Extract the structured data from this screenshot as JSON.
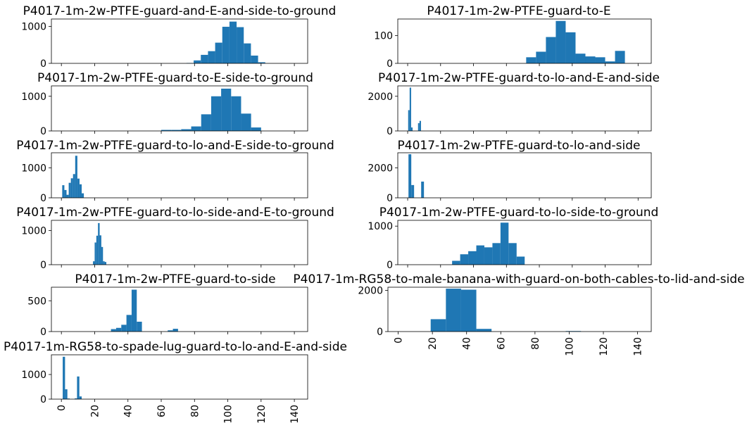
{
  "chart_data": [
    {
      "type": "bar",
      "title": "P4017-1m-2w-PTFE-guard-and-E-and-side-to-ground",
      "bin_width": 4.3,
      "bars": [
        [
          75.2,
          10
        ],
        [
          79.5,
          80
        ],
        [
          83.8,
          230
        ],
        [
          88.1,
          330
        ],
        [
          92.4,
          560
        ],
        [
          96.7,
          990
        ],
        [
          101.0,
          1130
        ],
        [
          105.3,
          980
        ],
        [
          109.6,
          540
        ],
        [
          113.9,
          210
        ],
        [
          118.2,
          30
        ]
      ],
      "yticks": [
        0,
        1000
      ],
      "ylim": [
        0,
        1200
      ],
      "show_xticklabels": false
    },
    {
      "type": "bar",
      "title": "P4017-1m-2w-PTFE-guard-to-E",
      "bin_width": 6.0,
      "bars": [
        [
          72.0,
          22
        ],
        [
          78.0,
          42
        ],
        [
          84.0,
          95
        ],
        [
          90.0,
          153
        ],
        [
          96.0,
          112
        ],
        [
          102.0,
          35
        ],
        [
          108.0,
          25
        ],
        [
          114.0,
          22
        ],
        [
          120.0,
          7
        ],
        [
          126.0,
          45
        ]
      ],
      "yticks": [
        0,
        100
      ],
      "ylim": [
        0,
        160
      ],
      "show_xticklabels": false
    },
    {
      "type": "bar",
      "title": "P4017-1m-2w-PTFE-guard-to-E-side-to-ground",
      "bin_width": 6.0,
      "bars": [
        [
          60.0,
          30
        ],
        [
          66.0,
          30
        ],
        [
          72.0,
          50
        ],
        [
          78.0,
          130
        ],
        [
          84.0,
          480
        ],
        [
          90.0,
          1000
        ],
        [
          96.0,
          1220
        ],
        [
          102.0,
          1000
        ],
        [
          108.0,
          500
        ],
        [
          114.0,
          100
        ]
      ],
      "yticks": [
        0,
        1000
      ],
      "ylim": [
        0,
        1300
      ],
      "show_xticklabels": false
    },
    {
      "type": "bar",
      "title": "P4017-1m-2w-PTFE-guard-to-lo-and-E-and-side",
      "bin_width": 0.9,
      "bars": [
        [
          0.3,
          1200
        ],
        [
          1.2,
          2500
        ],
        [
          2.1,
          200
        ],
        [
          6.3,
          450
        ],
        [
          7.2,
          580
        ]
      ],
      "yticks": [
        0,
        2000
      ],
      "ylim": [
        0,
        2600
      ],
      "show_xticklabels": false
    },
    {
      "type": "bar",
      "title": "P4017-1m-2w-PTFE-guard-to-lo-and-E-side-to-ground",
      "bin_width": 1.3,
      "bars": [
        [
          0.5,
          420
        ],
        [
          1.8,
          260
        ],
        [
          3.1,
          100
        ],
        [
          4.4,
          500
        ],
        [
          5.7,
          650
        ],
        [
          7.0,
          790
        ],
        [
          8.3,
          1400
        ],
        [
          9.6,
          640
        ],
        [
          10.9,
          450
        ],
        [
          12.2,
          150
        ]
      ],
      "yticks": [
        0,
        1000
      ],
      "ylim": [
        0,
        1500
      ],
      "show_xticklabels": false
    },
    {
      "type": "bar",
      "title": "P4017-1m-2w-PTFE-guard-to-lo-and-side",
      "bin_width": 1.7,
      "bars": [
        [
          0.5,
          2900
        ],
        [
          2.2,
          850
        ],
        [
          8.2,
          1080
        ]
      ],
      "yticks": [
        0,
        2000
      ],
      "ylim": [
        0,
        3000
      ],
      "show_xticklabels": false
    },
    {
      "type": "bar",
      "title": "P4017-1m-2w-PTFE-guard-to-lo-side-and-E-to-ground",
      "bin_width": 1.0,
      "bars": [
        [
          19.0,
          100
        ],
        [
          20.0,
          650
        ],
        [
          21.0,
          850
        ],
        [
          22.0,
          1220
        ],
        [
          23.0,
          860
        ],
        [
          24.0,
          520
        ],
        [
          25.0,
          100
        ],
        [
          26.0,
          80
        ]
      ],
      "yticks": [
        0,
        1000
      ],
      "ylim": [
        0,
        1300
      ],
      "show_xticklabels": false
    },
    {
      "type": "bar",
      "title": "P4017-1m-2w-PTFE-guard-to-lo-side-to-ground",
      "bin_width": 4.9,
      "bars": [
        [
          27.0,
          100
        ],
        [
          31.9,
          270
        ],
        [
          36.8,
          350
        ],
        [
          41.7,
          500
        ],
        [
          46.6,
          450
        ],
        [
          51.5,
          560
        ],
        [
          56.4,
          1090
        ],
        [
          61.3,
          560
        ],
        [
          66.2,
          210
        ]
      ],
      "yticks": [
        0,
        1000
      ],
      "ylim": [
        0,
        1150
      ],
      "show_xticklabels": false
    },
    {
      "type": "bar",
      "title": "P4017-1m-2w-PTFE-guard-to-side",
      "bin_width": 3.1,
      "bars": [
        [
          29.8,
          40
        ],
        [
          32.9,
          60
        ],
        [
          36.0,
          110
        ],
        [
          39.1,
          270
        ],
        [
          42.2,
          680
        ],
        [
          45.3,
          160
        ],
        [
          63.9,
          20
        ],
        [
          67.0,
          45
        ]
      ],
      "yticks": [
        0,
        500
      ],
      "ylim": [
        0,
        720
      ],
      "show_xticklabels": false
    },
    {
      "type": "bar",
      "title": "P4017-1m-RG58-to-male-banana-with-guard-on-both-cables-to-lid-and-side",
      "bin_width": 8.9,
      "bars": [
        [
          19.0,
          600
        ],
        [
          27.9,
          2080
        ],
        [
          36.8,
          2030
        ],
        [
          45.7,
          130
        ],
        [
          98.0,
          25
        ]
      ],
      "yticks": [
        0,
        2000
      ],
      "ylim": [
        0,
        2150
      ],
      "show_xticklabels": true
    },
    {
      "type": "bar",
      "title": "P4017-1m-RG58-to-spade-lug-guard-to-lo-and-E-and-side",
      "bin_width": 1.4,
      "bars": [
        [
          0.8,
          1720
        ],
        [
          2.2,
          400
        ],
        [
          3.6,
          25
        ],
        [
          8.0,
          30
        ],
        [
          9.4,
          920
        ],
        [
          10.8,
          110
        ]
      ],
      "yticks": [
        0,
        1000
      ],
      "ylim": [
        0,
        1800
      ],
      "show_xticklabels": true
    }
  ],
  "xaxis": {
    "xlim": [
      -6,
      148
    ],
    "ticks": [
      0,
      20,
      40,
      60,
      80,
      100,
      120,
      140
    ],
    "tick_labels": [
      "0",
      "20",
      "40",
      "60",
      "80",
      "100",
      "120",
      "140"
    ]
  },
  "colors": {
    "bar": "#1f77b4",
    "axis": "#000000"
  }
}
